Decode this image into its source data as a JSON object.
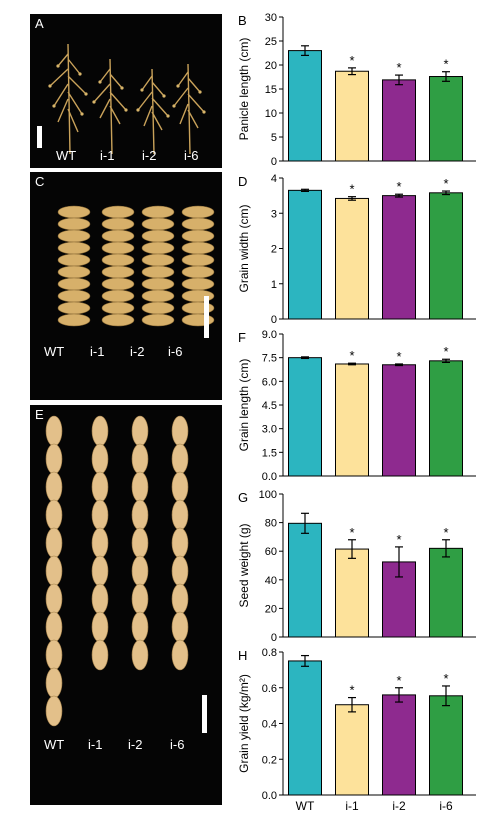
{
  "photos": [
    {
      "letter": "A",
      "labels": [
        "WT",
        "i-1",
        "i-2",
        "i-6"
      ]
    },
    {
      "letter": "C",
      "labels": [
        "WT",
        "i-1",
        "i-2",
        "i-6"
      ]
    },
    {
      "letter": "E",
      "labels": [
        "WT",
        "i-1",
        "i-2",
        "i-6"
      ]
    }
  ],
  "colors": {
    "WT": "#2cb5c0",
    "i-1": "#fde29b",
    "i-2": "#8e2a8f",
    "i-6": "#2f9e44"
  },
  "chart_data": [
    {
      "letter": "B",
      "type": "bar",
      "categories": [
        "WT",
        "i-1",
        "i-2",
        "i-6"
      ],
      "ylabel": "Panicle length (cm)",
      "ylim": [
        0,
        30
      ],
      "yticks": [
        "0",
        "5",
        "10",
        "15",
        "20",
        "25",
        "30"
      ],
      "values": [
        23.0,
        18.7,
        16.9,
        17.6
      ],
      "errors": [
        1.0,
        0.7,
        1.0,
        1.0
      ],
      "significance": [
        "",
        "*",
        "*",
        "*"
      ]
    },
    {
      "letter": "D",
      "type": "bar",
      "categories": [
        "WT",
        "i-1",
        "i-2",
        "i-6"
      ],
      "ylabel": "Grain width (cm)",
      "ylim": [
        0,
        4
      ],
      "yticks": [
        "0",
        "1",
        "2",
        "3",
        "4"
      ],
      "values": [
        3.65,
        3.42,
        3.5,
        3.58
      ],
      "errors": [
        0.03,
        0.05,
        0.04,
        0.05
      ],
      "significance": [
        "",
        "*",
        "*",
        "*"
      ]
    },
    {
      "letter": "F",
      "type": "bar",
      "categories": [
        "WT",
        "i-1",
        "i-2",
        "i-6"
      ],
      "ylabel": "Grain length (cm)",
      "ylim": [
        0,
        9
      ],
      "yticks": [
        "0.0",
        "1.5",
        "3.0",
        "4.5",
        "6.0",
        "7.5",
        "9.0"
      ],
      "values": [
        7.5,
        7.1,
        7.05,
        7.3
      ],
      "errors": [
        0.05,
        0.05,
        0.05,
        0.1
      ],
      "significance": [
        "",
        "*",
        "*",
        "*"
      ]
    },
    {
      "letter": "G",
      "type": "bar",
      "categories": [
        "WT",
        "i-1",
        "i-2",
        "i-6"
      ],
      "ylabel": "Seed weight (g)",
      "ylim": [
        0,
        100
      ],
      "yticks": [
        "0",
        "20",
        "40",
        "60",
        "80",
        "100"
      ],
      "values": [
        79.5,
        61.5,
        52.5,
        62.0
      ],
      "errors": [
        7.0,
        6.5,
        10.5,
        6.0
      ],
      "significance": [
        "",
        "*",
        "*",
        "*"
      ]
    },
    {
      "letter": "H",
      "type": "bar",
      "categories": [
        "WT",
        "i-1",
        "i-2",
        "i-6"
      ],
      "ylabel": "Grain yield (kg/m²)",
      "ylim": [
        0,
        0.8
      ],
      "yticks": [
        "0.0",
        "0.2",
        "0.4",
        "0.6",
        "0.8"
      ],
      "values": [
        0.75,
        0.505,
        0.56,
        0.555
      ],
      "errors": [
        0.03,
        0.04,
        0.04,
        0.055
      ],
      "significance": [
        "",
        "*",
        "*",
        "*"
      ]
    }
  ]
}
